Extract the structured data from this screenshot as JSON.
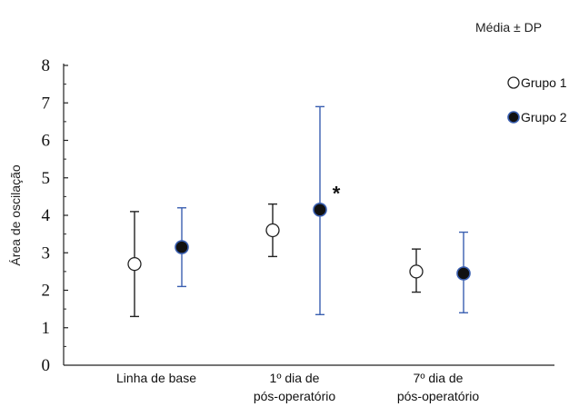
{
  "chart_data": {
    "type": "scatter",
    "subtitle": "Média ± DP",
    "xlabel": "",
    "ylabel": "Área de oscilação",
    "ylim": [
      0,
      8
    ],
    "yticks": [
      "0",
      "1",
      "2",
      "3",
      "4",
      "5",
      "6",
      "7",
      "8"
    ],
    "categories": [
      "Linha de base",
      "1º dia de pós-operatório",
      "7º dia de pós-operatório"
    ],
    "category_lines": [
      [
        "Linha de base"
      ],
      [
        "1º dia de",
        "pós-operatório"
      ],
      [
        "7º dia de",
        "pós-operatório"
      ]
    ],
    "series": [
      {
        "name": "Grupo 1",
        "marker": "open-circle",
        "color": "#ffffff",
        "whisker_color": "#222222",
        "values": [
          2.7,
          3.6,
          2.5
        ],
        "err_low": [
          1.3,
          2.9,
          1.95
        ],
        "err_high": [
          4.1,
          4.3,
          3.1
        ]
      },
      {
        "name": "Grupo 2",
        "marker": "filled-circle",
        "color": "#111111",
        "whisker_color": "#3a5fb0",
        "values": [
          3.15,
          4.15,
          2.45
        ],
        "err_low": [
          2.1,
          1.35,
          1.4
        ],
        "err_high": [
          4.2,
          6.9,
          3.55
        ]
      }
    ],
    "annotations": [
      {
        "text": "*",
        "category_index": 1,
        "y": 4.6
      }
    ],
    "legend_position": "top-right",
    "grid": false
  }
}
